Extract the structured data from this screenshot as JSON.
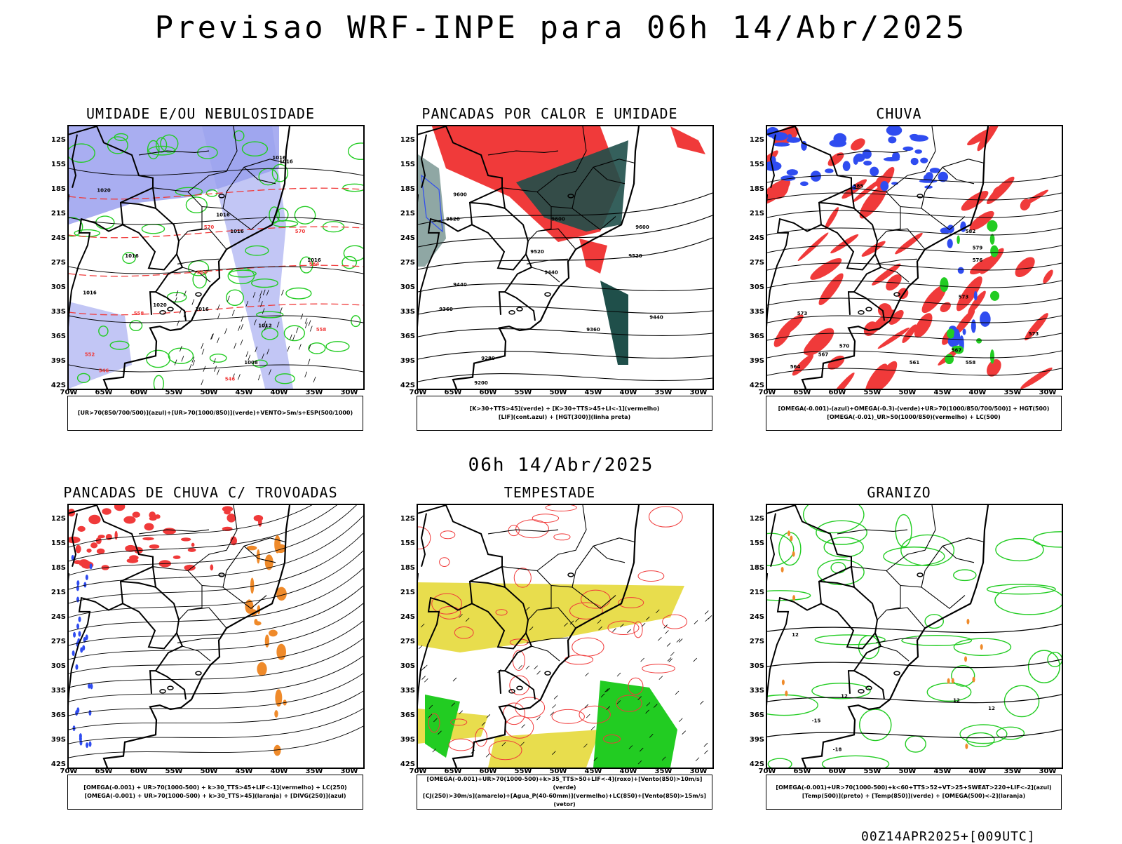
{
  "title": "Previsao WRF-INPE  para 06h 14/Abr/2025",
  "mid_title": "06h 14/Abr/2025",
  "footer": "00Z14APR2025+[009UTC]",
  "lat_ticks": [
    "12S",
    "15S",
    "18S",
    "21S",
    "24S",
    "27S",
    "30S",
    "33S",
    "36S",
    "39S",
    "42S"
  ],
  "lon_ticks": [
    "70W",
    "65W",
    "60W",
    "55W",
    "50W",
    "45W",
    "40W",
    "35W",
    "30W"
  ],
  "colors": {
    "blue": "#2f4cf0",
    "red": "#f03a3a",
    "green": "#22cc22",
    "darkteal": "#1f4f4a",
    "lavender": "#9aa0ee",
    "orange": "#ef8a2a",
    "yellow": "#e6d93a",
    "black": "#000000"
  },
  "panels": [
    {
      "title": "UMIDADE E/OU NEBULOSIDADE",
      "legend": [
        "[UR>70(850/700/500)](azul)+[UR>70(1000/850)](verde)+VENTO>5m/s+ESP(500/1000)"
      ],
      "contour_labels": [
        {
          "text": "1016",
          "lat": -14,
          "lon": -40
        },
        {
          "text": "1016",
          "lat": -14.5,
          "lon": -39
        },
        {
          "text": "1020",
          "lat": -18,
          "lon": -65
        },
        {
          "text": "1016",
          "lat": -21,
          "lon": -48
        },
        {
          "text": "1016",
          "lat": -23,
          "lon": -46
        },
        {
          "text": "1016",
          "lat": -26,
          "lon": -61
        },
        {
          "text": "1016",
          "lat": -26.5,
          "lon": -35
        },
        {
          "text": "1016",
          "lat": -30.5,
          "lon": -67
        },
        {
          "text": "1020",
          "lat": -32,
          "lon": -57
        },
        {
          "text": "1016",
          "lat": -32.5,
          "lon": -51
        },
        {
          "text": "1012",
          "lat": -34.5,
          "lon": -42
        },
        {
          "text": "1008",
          "lat": -39,
          "lon": -44
        },
        {
          "text": "570",
          "lat": -22.5,
          "lon": -50
        },
        {
          "text": "570",
          "lat": -23,
          "lon": -37
        },
        {
          "text": "564",
          "lat": -28,
          "lon": -51
        },
        {
          "text": "564",
          "lat": -27,
          "lon": -35
        },
        {
          "text": "558",
          "lat": -33,
          "lon": -60
        },
        {
          "text": "552",
          "lat": -38,
          "lon": -67
        },
        {
          "text": "558",
          "lat": -35,
          "lon": -34
        },
        {
          "text": "546",
          "lat": -40,
          "lon": -65
        },
        {
          "text": "546",
          "lat": -41,
          "lon": -47
        }
      ]
    },
    {
      "title": "PANCADAS POR CALOR E UMIDADE",
      "legend": [
        "[K>30+TTS>45](verde) + [K>30+TTS>45+LI<-1](vermelho)",
        "[LIF](cont.azul) + [HGT(300)](linha preta)"
      ],
      "contour_labels": [
        {
          "text": "9600",
          "lat": -18.5,
          "lon": -64
        },
        {
          "text": "9520",
          "lat": -21.5,
          "lon": -65
        },
        {
          "text": "9600",
          "lat": -21.5,
          "lon": -50
        },
        {
          "text": "9600",
          "lat": -22.5,
          "lon": -38
        },
        {
          "text": "9520",
          "lat": -25.5,
          "lon": -53
        },
        {
          "text": "9520",
          "lat": -26,
          "lon": -39
        },
        {
          "text": "9440",
          "lat": -28,
          "lon": -51
        },
        {
          "text": "9440",
          "lat": -29.5,
          "lon": -64
        },
        {
          "text": "9360",
          "lat": -32.5,
          "lon": -66
        },
        {
          "text": "9440",
          "lat": -33.5,
          "lon": -36
        },
        {
          "text": "9360",
          "lat": -35,
          "lon": -45
        },
        {
          "text": "9280",
          "lat": -38.5,
          "lon": -60
        },
        {
          "text": "9200",
          "lat": -41.5,
          "lon": -61
        }
      ]
    },
    {
      "title": "CHUVA",
      "legend": [
        "[OMEGA(-0.001)-(azul)+OMEGA(-0.3)-(verde)+UR>70(1000/850/700/500)] + HGT(500)",
        "[OMEGA(-0.01)_UR>50(1000/850)(vermelho) + LC(500)"
      ],
      "contour_labels": [
        {
          "text": "585",
          "lat": -17.5,
          "lon": -57
        },
        {
          "text": "582",
          "lat": -23,
          "lon": -41
        },
        {
          "text": "579",
          "lat": -25,
          "lon": -40
        },
        {
          "text": "576",
          "lat": -26.5,
          "lon": -40
        },
        {
          "text": "573",
          "lat": -31,
          "lon": -42
        },
        {
          "text": "573",
          "lat": -33,
          "lon": -65
        },
        {
          "text": "573",
          "lat": -35.5,
          "lon": -32
        },
        {
          "text": "570",
          "lat": -37,
          "lon": -59
        },
        {
          "text": "567",
          "lat": -38,
          "lon": -62
        },
        {
          "text": "567",
          "lat": -37.5,
          "lon": -43
        },
        {
          "text": "564",
          "lat": -39.5,
          "lon": -66
        },
        {
          "text": "561",
          "lat": -39,
          "lon": -49
        },
        {
          "text": "558",
          "lat": -39,
          "lon": -41
        }
      ]
    },
    {
      "title": "PANCADAS DE CHUVA C/ TROVOADAS",
      "legend": [
        "[OMEGA(-0.001) + UR>70(1000-500) + k>30_TTS>45+LIF<-1](vermelho) + LC(250)",
        "[OMEGA(-0.001) + UR>70(1000-500) + k>30_TTS>45](laranja) + [DIVG(250)](azul)"
      ],
      "contour_labels": []
    },
    {
      "title": "TEMPESTADE",
      "legend": [
        "[OMEGA(-0.001)+UR>70(1000-500)+k>35_TTS>50+LIF<-4](roxo)+[Vento(850)>10m/s](verde)",
        "[CJ(250)>30m/s](amarelo)+[Agua_P(40-60mm)](vermelho)+LC(850)+[Vento(850)>15m/s](vetor)"
      ],
      "contour_labels": []
    },
    {
      "title": "GRANIZO",
      "legend": [
        "[OMEGA(-0.001)+UR>70(1000-500)+k<60+TTS>52+VT>25+SWEAT>220+LIF<-2](azul)",
        "[Temp(500)](preto) + [Temp(850)](verde) + [OMEGA(500)<-2](laranja)"
      ],
      "contour_labels": [
        {
          "text": "12",
          "lat": -26,
          "lon": -66
        },
        {
          "text": "12",
          "lat": -33.5,
          "lon": -59
        },
        {
          "text": "12",
          "lat": -34,
          "lon": -43
        },
        {
          "text": "12",
          "lat": -35,
          "lon": -38
        },
        {
          "text": "-15",
          "lat": -36.5,
          "lon": -63
        },
        {
          "text": "-18",
          "lat": -40,
          "lon": -60
        }
      ]
    }
  ]
}
